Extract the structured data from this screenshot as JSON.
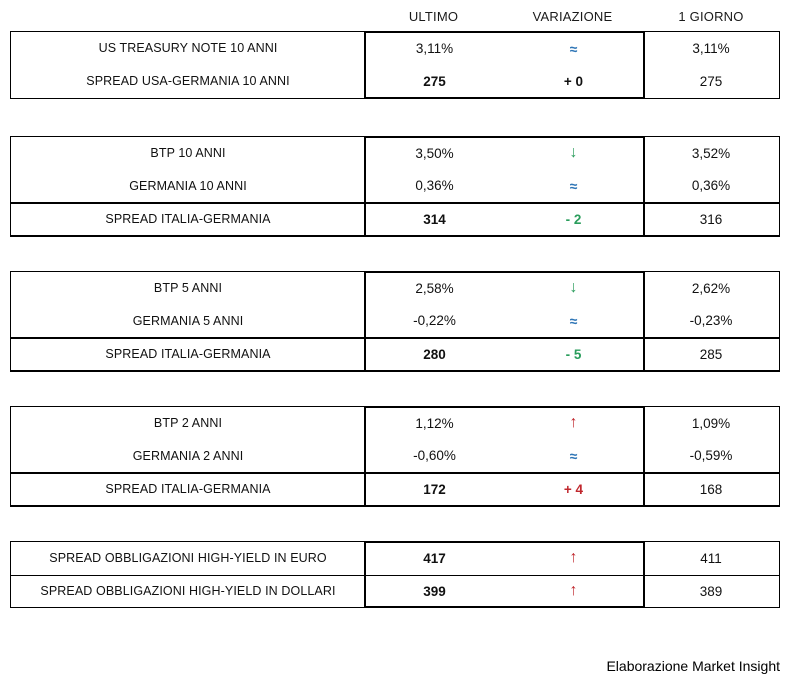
{
  "header": {
    "columns": [
      "ULTIMO",
      "VARIAZIONE",
      "1 GIORNO"
    ]
  },
  "colors": {
    "up": "#c0272d",
    "down": "#2a9d5c",
    "flat": "#2e75b6",
    "border": "#000000",
    "text": "#111111"
  },
  "tables": [
    {
      "rows": [
        {
          "label": "US TREASURY NOTE 10 ANNI",
          "ultimo": "3,11%",
          "variazione": {
            "symbol": "≈",
            "dir": "flat"
          },
          "giorno": "3,11%"
        },
        {
          "label": "SPREAD USA-GERMANIA 10 ANNI",
          "ultimo": "275",
          "variazione": {
            "symbol": "+ 0",
            "dir": "neutral"
          },
          "giorno": "275"
        }
      ]
    },
    {
      "rows": [
        {
          "label": "BTP 10 ANNI",
          "ultimo": "3,50%",
          "variazione": {
            "symbol": "↓",
            "dir": "down"
          },
          "giorno": "3,52%"
        },
        {
          "label": "GERMANIA 10 ANNI",
          "ultimo": "0,36%",
          "variazione": {
            "symbol": "≈",
            "dir": "flat"
          },
          "giorno": "0,36%"
        },
        {
          "label": "SPREAD ITALIA-GERMANIA",
          "ultimo": "314",
          "variazione": {
            "symbol": "- 2",
            "dir": "down"
          },
          "giorno": "316"
        }
      ]
    },
    {
      "rows": [
        {
          "label": "BTP 5 ANNI",
          "ultimo": "2,58%",
          "variazione": {
            "symbol": "↓",
            "dir": "down"
          },
          "giorno": "2,62%"
        },
        {
          "label": "GERMANIA 5 ANNI",
          "ultimo": "-0,22%",
          "variazione": {
            "symbol": "≈",
            "dir": "flat"
          },
          "giorno": "-0,23%"
        },
        {
          "label": "SPREAD ITALIA-GERMANIA",
          "ultimo": "280",
          "variazione": {
            "symbol": "- 5",
            "dir": "down"
          },
          "giorno": "285"
        }
      ]
    },
    {
      "rows": [
        {
          "label": "BTP 2 ANNI",
          "ultimo": "1,12%",
          "variazione": {
            "symbol": "↑",
            "dir": "up"
          },
          "giorno": "1,09%"
        },
        {
          "label": "GERMANIA 2 ANNI",
          "ultimo": "-0,60%",
          "variazione": {
            "symbol": "≈",
            "dir": "flat"
          },
          "giorno": "-0,59%"
        },
        {
          "label": "SPREAD ITALIA-GERMANIA",
          "ultimo": "172",
          "variazione": {
            "symbol": "+ 4",
            "dir": "up"
          },
          "giorno": "168"
        }
      ]
    },
    {
      "rows": [
        {
          "label": "SPREAD OBBLIGAZIONI HIGH-YIELD IN EURO",
          "ultimo": "417",
          "variazione": {
            "symbol": "↑",
            "dir": "up"
          },
          "giorno": "411"
        },
        {
          "label": "SPREAD OBBLIGAZIONI HIGH-YIELD IN DOLLARI",
          "ultimo": "399",
          "variazione": {
            "symbol": "↑",
            "dir": "up"
          },
          "giorno": "389"
        }
      ]
    }
  ],
  "footer": {
    "credit": "Elaborazione Market Insight"
  }
}
